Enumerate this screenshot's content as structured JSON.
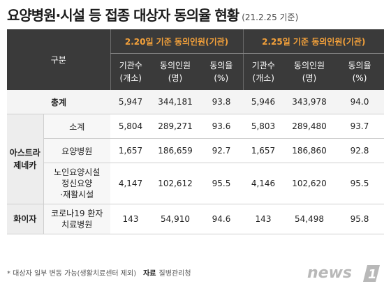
{
  "title": {
    "main": "요양병원·시설 등 접종 대상자 동의율 현황",
    "sub": "(21.2.25 기준)"
  },
  "table": {
    "category_header": "구분",
    "groups": [
      "2.20일 기준 동의인원(기관)",
      "2.25일 기준 동의인원(기관)"
    ],
    "columns": [
      "기관수\n(개소)",
      "동의인원\n(명)",
      "동의율\n(%)"
    ],
    "total": {
      "label": "총계",
      "values": [
        "5,947",
        "344,181",
        "93.8",
        "5,946",
        "343,978",
        "94.0"
      ]
    },
    "astra": {
      "label": "아스트라\n제네카",
      "rows": [
        {
          "label": "소계",
          "values": [
            "5,804",
            "289,271",
            "93.6",
            "5,803",
            "289,480",
            "93.7"
          ]
        },
        {
          "label": "요양병원",
          "values": [
            "1,657",
            "186,659",
            "92.7",
            "1,657",
            "186,860",
            "92.8"
          ]
        },
        {
          "label": "노인요양시설\n정신요양\n·재활시설",
          "values": [
            "4,147",
            "102,612",
            "95.5",
            "4,146",
            "102,620",
            "95.5"
          ]
        }
      ]
    },
    "pfizer": {
      "label": "화이자",
      "rows": [
        {
          "label": "코로나19 환자\n치료병원",
          "values": [
            "143",
            "54,910",
            "94.6",
            "143",
            "54,498",
            "95.8"
          ]
        }
      ]
    }
  },
  "footer": {
    "note": "* 대상자 일부 변동 가능(생활치료센터 제외)",
    "source_label": "자료",
    "source": "질병관리청"
  },
  "logo": {
    "text": "news",
    "mark": "1"
  }
}
